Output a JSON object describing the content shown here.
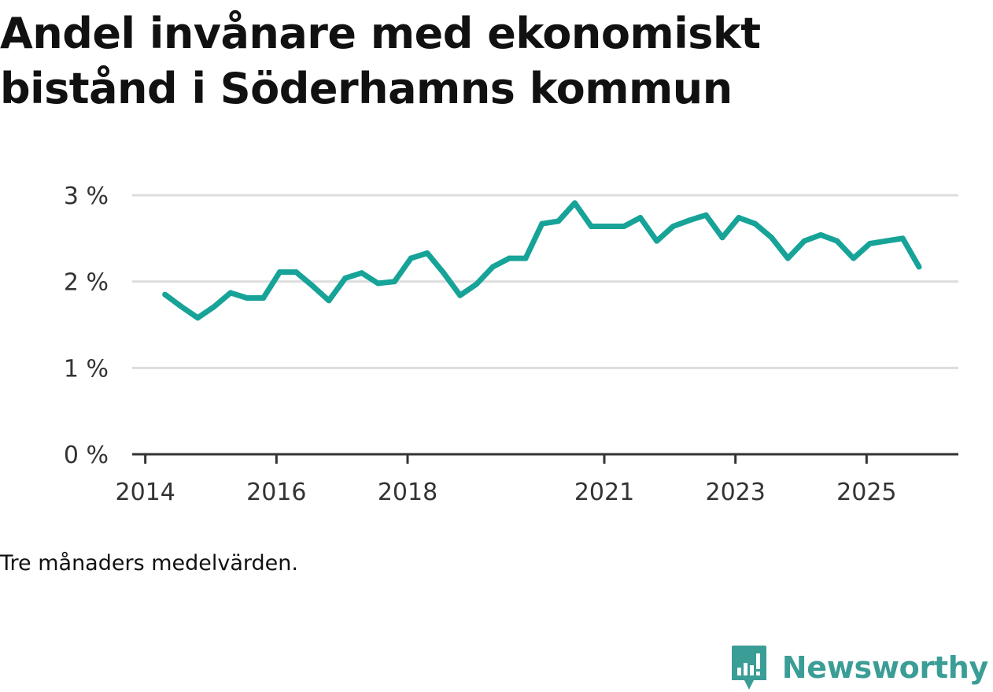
{
  "chart_data": {
    "type": "line",
    "title": "Andel invånare med ekonomiskt bistånd i Söderhamns kommun",
    "note": "Tre månaders medelvärden.",
    "xlabel": "",
    "ylabel": "",
    "ylim": [
      0,
      3
    ],
    "xlim": [
      2013.8,
      2026.4
    ],
    "yticks": [
      {
        "value": 0,
        "label": "0 %"
      },
      {
        "value": 1,
        "label": "1 %"
      },
      {
        "value": 2,
        "label": "2 %"
      },
      {
        "value": 3,
        "label": "3 %"
      }
    ],
    "xticks": [
      {
        "value": 2014,
        "label": "2014"
      },
      {
        "value": 2016,
        "label": "2016"
      },
      {
        "value": 2018,
        "label": "2018"
      },
      {
        "value": 2021,
        "label": "2021"
      },
      {
        "value": 2023,
        "label": "2023"
      },
      {
        "value": 2025,
        "label": "2025"
      }
    ],
    "grid": true,
    "series": [
      {
        "name": "Andel invånare med ekonomiskt bistånd",
        "color": "#17a398",
        "x": [
          2014.3,
          2014.55,
          2014.8,
          2015.05,
          2015.3,
          2015.55,
          2015.8,
          2016.05,
          2016.3,
          2016.55,
          2016.8,
          2017.05,
          2017.3,
          2017.55,
          2017.8,
          2018.05,
          2018.3,
          2018.55,
          2018.8,
          2019.05,
          2019.3,
          2019.55,
          2019.8,
          2020.05,
          2020.3,
          2020.55,
          2020.8,
          2021.05,
          2021.3,
          2021.55,
          2021.8,
          2022.05,
          2022.3,
          2022.55,
          2022.8,
          2023.05,
          2023.3,
          2023.55,
          2023.8,
          2024.05,
          2024.3,
          2024.55,
          2024.8,
          2025.05,
          2025.3,
          2025.55,
          2025.8
        ],
        "values": [
          1.85,
          1.71,
          1.58,
          1.71,
          1.87,
          1.81,
          1.81,
          2.11,
          2.11,
          1.95,
          1.78,
          2.04,
          2.1,
          1.98,
          2.0,
          2.27,
          2.33,
          2.1,
          1.84,
          1.97,
          2.17,
          2.27,
          2.27,
          2.67,
          2.7,
          2.91,
          2.64,
          2.64,
          2.64,
          2.74,
          2.47,
          2.64,
          2.71,
          2.77,
          2.51,
          2.74,
          2.67,
          2.51,
          2.27,
          2.47,
          2.54,
          2.47,
          2.27,
          2.44,
          2.47,
          2.5,
          2.17
        ]
      }
    ]
  },
  "branding": {
    "name": "Newsworthy",
    "color": "#3a9d96",
    "icon": "newsworthy-logo-icon"
  }
}
